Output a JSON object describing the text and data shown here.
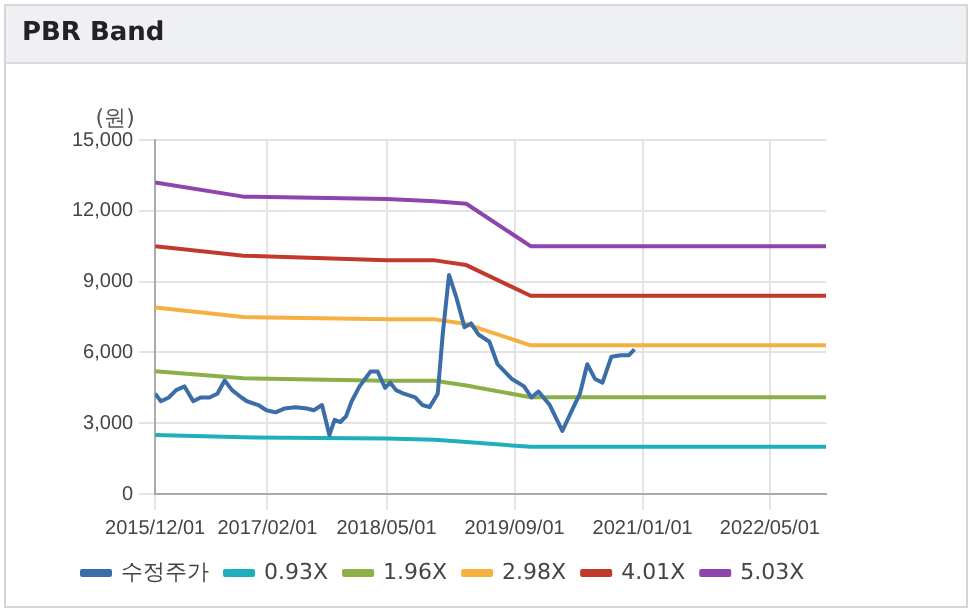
{
  "chart_data": {
    "type": "line",
    "title": "PBR Band",
    "ylabel": "(원)",
    "xlim": [
      "2015-12-01",
      "2022-12-01"
    ],
    "xticks": [
      {
        "value": "2015-12-01",
        "label": "2015/12/01"
      },
      {
        "value": "2017-02-01",
        "label": "2017/02/01"
      },
      {
        "value": "2018-05-01",
        "label": "2018/05/01"
      },
      {
        "value": "2019-09-01",
        "label": "2019/09/01"
      },
      {
        "value": "2021-01-01",
        "label": "2021/01/01"
      },
      {
        "value": "2022-05-01",
        "label": "2022/05/01"
      }
    ],
    "ylim": [
      0,
      15000
    ],
    "yticks": [
      0,
      {
        "value": 3000,
        "label": "3,000"
      },
      {
        "value": 6000,
        "label": "6,000"
      },
      {
        "value": 9000,
        "label": "9,000"
      },
      {
        "value": 12000,
        "label": "12,000"
      },
      {
        "value": 15000,
        "label": "15,000"
      }
    ],
    "grid": true,
    "legend": "bottom",
    "marker": "none",
    "line_style": "solid",
    "series": [
      {
        "name": "수정주가",
        "color": "#3b6ea8",
        "x": [
          "2015-12-01",
          "2015-12-23",
          "2016-01-22",
          "2016-02-19",
          "2016-03-22",
          "2016-04-24",
          "2016-05-22",
          "2016-06-25",
          "2016-07-25",
          "2016-08-22",
          "2016-09-19",
          "2016-10-25",
          "2016-11-15",
          "2016-12-28",
          "2017-01-28",
          "2017-03-04",
          "2017-04-06",
          "2017-05-19",
          "2017-07-01",
          "2017-07-28",
          "2017-08-28",
          "2017-09-25",
          "2017-10-15",
          "2017-11-06",
          "2017-11-28",
          "2017-12-19",
          "2018-01-18",
          "2018-03-01",
          "2018-03-28",
          "2018-04-25",
          "2018-05-15",
          "2018-06-06",
          "2018-07-06",
          "2018-08-18",
          "2018-09-15",
          "2018-10-12",
          "2018-11-12",
          "2018-12-01",
          "2018-12-25",
          "2019-01-22",
          "2019-02-22",
          "2019-03-19",
          "2019-04-16",
          "2019-05-28",
          "2019-06-28",
          "2019-08-22",
          "2019-10-07",
          "2019-11-04",
          "2019-12-01",
          "2020-01-13",
          "2020-03-01",
          "2020-04-07",
          "2020-05-07",
          "2020-06-04",
          "2020-07-04",
          "2020-08-01",
          "2020-09-04",
          "2020-10-10",
          "2020-11-10",
          "2020-12-01"
        ],
        "values": [
          4250,
          3930,
          4090,
          4400,
          4560,
          3930,
          4090,
          4090,
          4250,
          4810,
          4400,
          4090,
          3930,
          3770,
          3550,
          3460,
          3620,
          3680,
          3620,
          3550,
          3770,
          2500,
          3140,
          3050,
          3300,
          3930,
          4560,
          5190,
          5190,
          4500,
          4720,
          4400,
          4250,
          4090,
          3770,
          3680,
          4250,
          6760,
          9280,
          8330,
          7070,
          7230,
          6760,
          6450,
          5500,
          4870,
          4560,
          4090,
          4340,
          3770,
          2670,
          3550,
          4250,
          5500,
          4870,
          4720,
          5820,
          5880,
          5880,
          6130
        ]
      },
      {
        "name": "0.93X",
        "color": "#20aebd",
        "x": [
          "2015-12-01",
          "2016-11-01",
          "2018-05-01",
          "2018-11-01",
          "2019-03-01",
          "2019-11-01",
          "2022-12-01"
        ],
        "values": [
          2500,
          2400,
          2350,
          2300,
          2200,
          2000,
          2000
        ]
      },
      {
        "name": "1.96X",
        "color": "#8bb04a",
        "x": [
          "2015-12-01",
          "2016-11-01",
          "2018-05-01",
          "2018-11-01",
          "2019-03-01",
          "2019-11-01",
          "2022-12-01"
        ],
        "values": [
          5200,
          4900,
          4800,
          4800,
          4600,
          4100,
          4100
        ]
      },
      {
        "name": "2.98X",
        "color": "#f5b041",
        "x": [
          "2015-12-01",
          "2016-11-01",
          "2018-05-01",
          "2018-11-01",
          "2019-03-01",
          "2019-11-01",
          "2022-12-01"
        ],
        "values": [
          7900,
          7500,
          7400,
          7400,
          7200,
          6300,
          6300
        ]
      },
      {
        "name": "4.01X",
        "color": "#c0392b",
        "x": [
          "2015-12-01",
          "2016-11-01",
          "2018-05-01",
          "2018-11-01",
          "2019-03-01",
          "2019-11-01",
          "2022-12-01"
        ],
        "values": [
          10500,
          10100,
          9900,
          9900,
          9700,
          8400,
          8400
        ]
      },
      {
        "name": "5.03X",
        "color": "#8e44ad",
        "x": [
          "2015-12-01",
          "2016-11-01",
          "2018-05-01",
          "2018-11-01",
          "2019-03-01",
          "2019-11-01",
          "2022-12-01"
        ],
        "values": [
          13200,
          12600,
          12500,
          12400,
          12300,
          10500,
          10500
        ]
      }
    ]
  }
}
